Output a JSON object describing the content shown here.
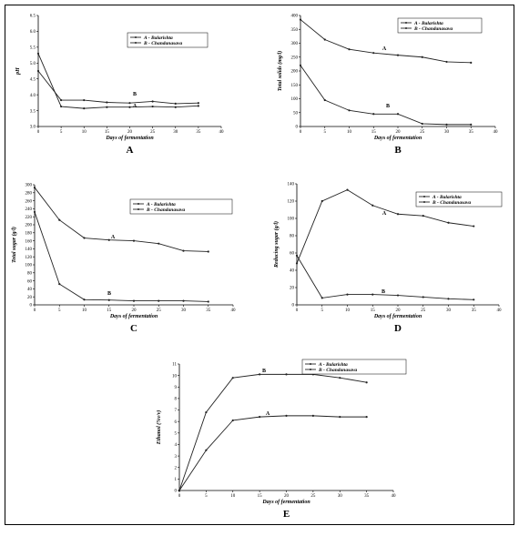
{
  "chart_data": [
    {
      "panel": "A",
      "type": "line",
      "xlabel": "Days of fermentation",
      "ylabel": "pH",
      "xlim": [
        0,
        40
      ],
      "ylim": [
        3.0,
        6.5
      ],
      "xticks": [
        0,
        5,
        10,
        15,
        20,
        25,
        30,
        35,
        40
      ],
      "yticks": [
        3.0,
        3.5,
        4.0,
        4.5,
        5.0,
        5.5,
        6.0,
        6.5
      ],
      "ytick_labels": [
        "3.0",
        "3.5",
        "4.0",
        "4.5",
        "5.0",
        "5.5",
        "6.0",
        "6.5"
      ],
      "legend": [
        "A - Balarishta",
        "B - Chandanasava"
      ],
      "series": [
        {
          "label": "A",
          "x": [
            0,
            5,
            10,
            15,
            20,
            25,
            30,
            35
          ],
          "y": [
            5.3,
            3.63,
            3.57,
            3.61,
            3.61,
            3.63,
            3.61,
            3.65
          ]
        },
        {
          "label": "B",
          "x": [
            0,
            5,
            10,
            15,
            20,
            25,
            30,
            35
          ],
          "y": [
            4.75,
            3.83,
            3.83,
            3.76,
            3.74,
            3.79,
            3.72,
            3.74
          ]
        }
      ]
    },
    {
      "panel": "B",
      "type": "line",
      "xlabel": "Days of fermentation",
      "ylabel": "Total solids (mg/l)",
      "xlim": [
        0,
        40
      ],
      "ylim": [
        0,
        400
      ],
      "xticks": [
        0,
        5,
        10,
        15,
        20,
        25,
        30,
        35,
        40
      ],
      "yticks": [
        0,
        50,
        100,
        150,
        200,
        250,
        300,
        350,
        400
      ],
      "ytick_labels": [
        "0",
        "50",
        "100",
        "150",
        "200",
        "250",
        "300",
        "350",
        "400"
      ],
      "legend": [
        "A - Balarishta",
        "B - Chandanasava"
      ],
      "series": [
        {
          "label": "A",
          "x": [
            0,
            5,
            10,
            15,
            20,
            25,
            30,
            35
          ],
          "y": [
            385,
            313,
            278,
            265,
            257,
            250,
            233,
            230
          ]
        },
        {
          "label": "B",
          "x": [
            0,
            5,
            10,
            15,
            20,
            25,
            30,
            35
          ],
          "y": [
            220,
            95,
            58,
            45,
            45,
            10,
            7,
            7
          ]
        }
      ]
    },
    {
      "panel": "C",
      "type": "line",
      "xlabel": "Days of fermentation",
      "ylabel": "Total sugar (g/l)",
      "xlim": [
        0,
        40
      ],
      "ylim": [
        0,
        300
      ],
      "xticks": [
        0,
        5,
        10,
        15,
        20,
        25,
        30,
        35,
        40
      ],
      "yticks": [
        0,
        20,
        40,
        60,
        80,
        100,
        120,
        140,
        160,
        180,
        200,
        220,
        240,
        260,
        280,
        300
      ],
      "ytick_labels": [
        "0",
        "20",
        "40",
        "60",
        "80",
        "100",
        "120",
        "140",
        "160",
        "180",
        "200",
        "220",
        "240",
        "260",
        "280",
        "300"
      ],
      "legend": [
        "A - Balarishta",
        "B - Chandanasava"
      ],
      "series": [
        {
          "label": "A",
          "x": [
            0,
            5,
            10,
            15,
            20,
            25,
            30,
            35
          ],
          "y": [
            293,
            212,
            167,
            162,
            160,
            153,
            135,
            133
          ]
        },
        {
          "label": "B",
          "x": [
            0,
            5,
            10,
            15,
            20,
            25,
            30,
            35
          ],
          "y": [
            232,
            52,
            13,
            12,
            10,
            10,
            10,
            8
          ]
        }
      ]
    },
    {
      "panel": "D",
      "type": "line",
      "xlabel": "Days of fermentation",
      "ylabel": "Reducing sugar (g/l)",
      "xlim": [
        0,
        40
      ],
      "ylim": [
        0,
        140
      ],
      "xticks": [
        0,
        5,
        10,
        15,
        20,
        25,
        30,
        35,
        40
      ],
      "yticks": [
        0,
        20,
        40,
        60,
        80,
        100,
        120,
        140
      ],
      "ytick_labels": [
        "0",
        "20",
        "40",
        "60",
        "80",
        "100",
        "120",
        "140"
      ],
      "legend": [
        "A - Balarishta",
        "B - Chandanasava"
      ],
      "series": [
        {
          "label": "A",
          "x": [
            0,
            5,
            10,
            15,
            20,
            25,
            30,
            35
          ],
          "y": [
            48,
            120,
            133,
            115,
            105,
            103,
            95,
            91
          ]
        },
        {
          "label": "B",
          "x": [
            0,
            5,
            10,
            15,
            20,
            25,
            30,
            35
          ],
          "y": [
            57,
            8,
            12,
            12,
            11,
            9,
            7,
            6
          ]
        }
      ]
    },
    {
      "panel": "E",
      "type": "line",
      "xlabel": "Days of fermentation",
      "ylabel": "Ethanol (%v/v)",
      "xlim": [
        0,
        40
      ],
      "ylim": [
        0,
        11
      ],
      "xticks": [
        0,
        5,
        10,
        15,
        20,
        25,
        30,
        35,
        40
      ],
      "yticks": [
        0,
        1,
        2,
        3,
        4,
        5,
        6,
        7,
        8,
        9,
        10,
        11
      ],
      "ytick_labels": [
        "0",
        "1",
        "2",
        "3",
        "4",
        "5",
        "6",
        "7",
        "8",
        "9",
        "10",
        "11"
      ],
      "legend": [
        "A - Balarishta",
        "B - Chandanasava"
      ],
      "series": [
        {
          "label": "A",
          "x": [
            0,
            5,
            10,
            15,
            20,
            25,
            30,
            35
          ],
          "y": [
            0,
            3.5,
            6.1,
            6.4,
            6.5,
            6.5,
            6.4,
            6.4
          ]
        },
        {
          "label": "B",
          "x": [
            0,
            5,
            10,
            15,
            20,
            25,
            30,
            35
          ],
          "y": [
            0,
            6.8,
            9.8,
            10.1,
            10.1,
            10.1,
            9.8,
            9.4
          ]
        }
      ]
    }
  ]
}
